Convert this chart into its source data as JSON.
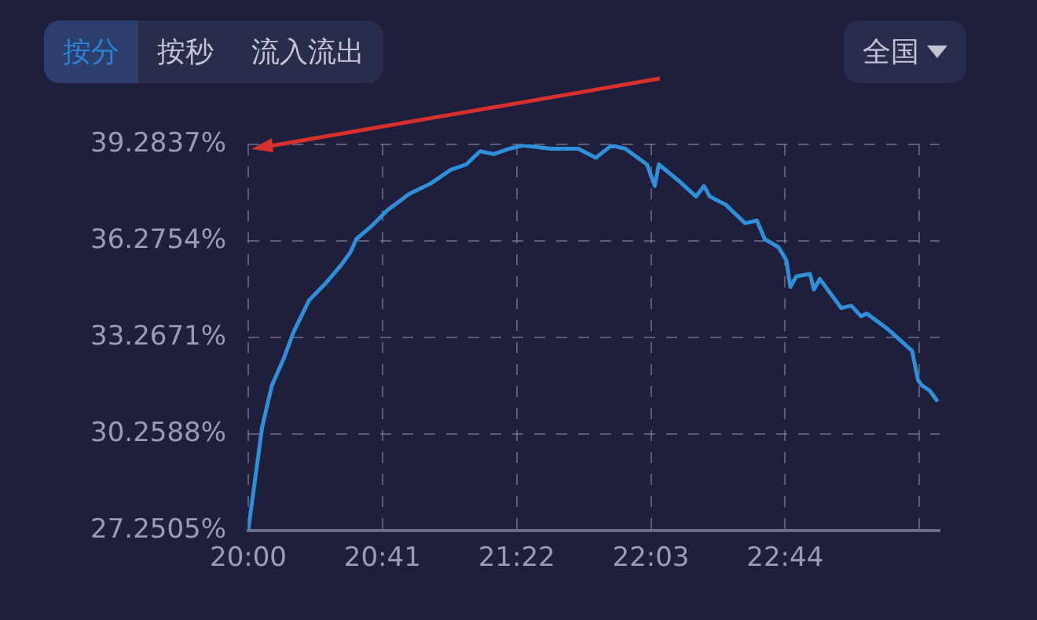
{
  "chart_data": {
    "type": "line",
    "annotations": [
      "按分",
      "按秒",
      "流入流出",
      "全国"
    ],
    "x": [
      20.0,
      20.03,
      20.07,
      20.12,
      20.18,
      20.23,
      20.31,
      20.39,
      20.47,
      20.52,
      20.55,
      20.63,
      20.71,
      20.82,
      20.93,
      21.03,
      21.11,
      21.18,
      21.25,
      21.33,
      21.4,
      21.54,
      21.68,
      21.77,
      21.85,
      21.92,
      22.03,
      22.07,
      22.09,
      22.19,
      22.28,
      22.32,
      22.35,
      22.43,
      22.53,
      22.59,
      22.63,
      22.7,
      22.74,
      22.76,
      22.79,
      22.86,
      22.88,
      22.91,
      23.02,
      23.07,
      23.12,
      23.15,
      23.26,
      23.38,
      23.41,
      23.43,
      23.47,
      23.51
    ],
    "series": [
      {
        "color": "#2f8fd8",
        "values": [
          27.26,
          28.62,
          30.45,
          31.77,
          32.6,
          33.43,
          34.43,
          34.93,
          35.5,
          35.92,
          36.33,
          36.75,
          37.24,
          37.74,
          38.07,
          38.49,
          38.66,
          39.07,
          38.98,
          39.15,
          39.25,
          39.15,
          39.15,
          38.87,
          39.25,
          39.15,
          38.66,
          37.99,
          38.66,
          38.16,
          37.66,
          37.99,
          37.66,
          37.41,
          36.83,
          36.91,
          36.33,
          36.08,
          35.67,
          34.84,
          35.17,
          35.25,
          34.76,
          35.09,
          34.18,
          34.26,
          33.93,
          34.01,
          33.51,
          32.85,
          31.94,
          31.77,
          31.61,
          31.27
        ]
      }
    ],
    "xlim": [
      20,
      23.52
    ],
    "xticks": [
      {
        "value": 20,
        "label": "20:00"
      },
      {
        "value": 20.6833,
        "label": "20:41"
      },
      {
        "value": 21.3667,
        "label": "21:22"
      },
      {
        "value": 22.05,
        "label": "22:03"
      },
      {
        "value": 22.7333,
        "label": "22:44"
      },
      {
        "value": 23.4167,
        "label": null
      }
    ],
    "ylim": [
      27.2505,
      39.2837
    ],
    "yticks": [
      {
        "value": 27.2505,
        "label": "27.2505%"
      },
      {
        "value": 30.2588,
        "label": "30.2588%"
      },
      {
        "value": 33.2671,
        "label": "33.2671%"
      },
      {
        "value": 36.2754,
        "label": "36.2754%"
      },
      {
        "value": 39.2837,
        "label": "39.2837%"
      }
    ],
    "grid": true,
    "marker": "none",
    "line_style": "solid"
  }
}
